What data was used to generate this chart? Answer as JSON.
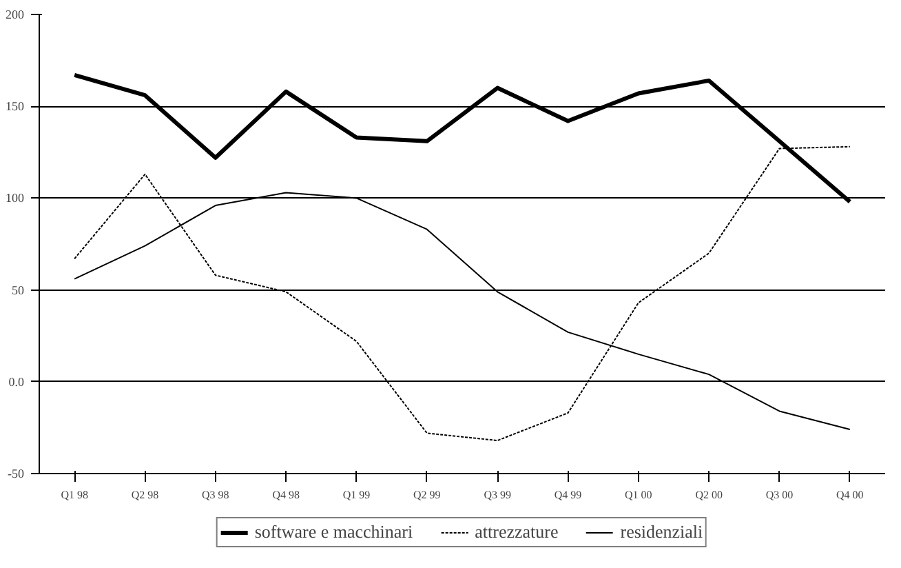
{
  "chart_data": {
    "type": "line",
    "categories": [
      "Q1 98",
      "Q2 98",
      "Q3 98",
      "Q4 98",
      "Q1 99",
      "Q2 99",
      "Q3 99",
      "Q4 99",
      "Q1 00",
      "Q2 00",
      "Q3 00",
      "Q4 00"
    ],
    "series": [
      {
        "name": "software e macchinari",
        "color": "#000000",
        "line_style": "solid",
        "values": [
          167,
          156,
          122,
          158,
          133,
          131,
          160,
          142,
          157,
          164,
          131,
          98
        ]
      },
      {
        "name": "attrezzature",
        "color": "#000000",
        "line_style": "dotted",
        "values": [
          67,
          113,
          58,
          49,
          22,
          -28,
          -32,
          -17,
          43,
          70,
          127,
          128
        ]
      },
      {
        "name": "residenziali",
        "color": "#000000",
        "line_style": "solid",
        "values": [
          56,
          74,
          96,
          103,
          100,
          83,
          49,
          27,
          15,
          4,
          -16,
          -26
        ]
      }
    ],
    "ylim": [
      -50,
      200
    ],
    "yticks": [
      200,
      150,
      100,
      50,
      {
        "value": 0,
        "label": "0.0"
      },
      -50
    ],
    "grid": "y",
    "legend": "bottom",
    "marker": "none"
  }
}
